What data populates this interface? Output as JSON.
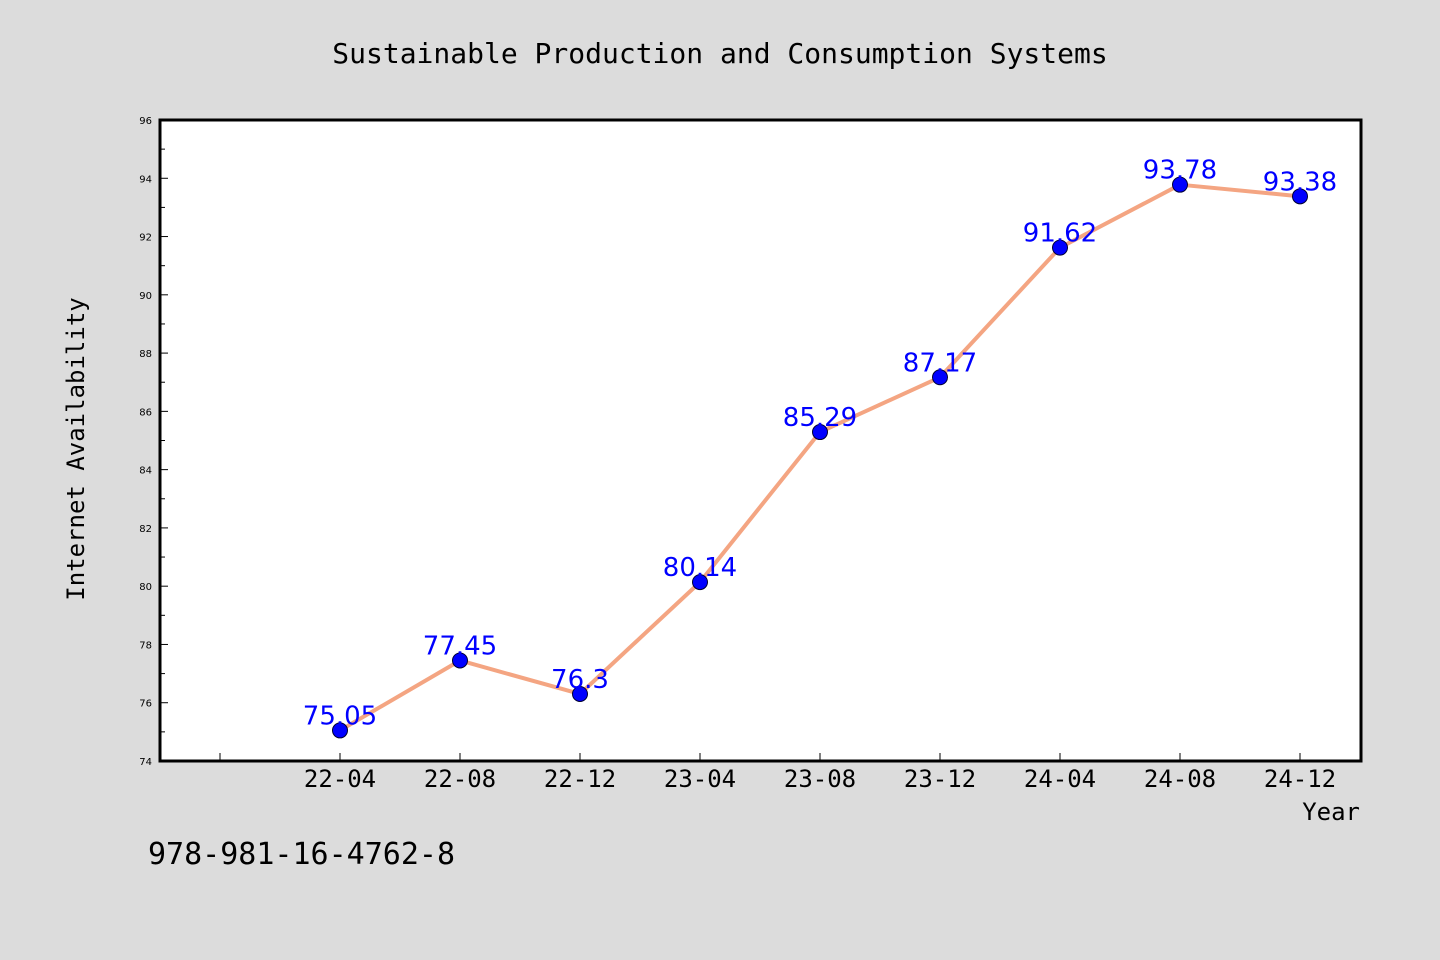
{
  "chart_data": {
    "type": "line",
    "title": "Sustainable Production and Consumption Systems",
    "xlabel": "Year",
    "ylabel": "Internet Availability",
    "categories": [
      "22-04",
      "22-08",
      "22-12",
      "23-04",
      "23-08",
      "23-12",
      "24-04",
      "24-08",
      "24-12"
    ],
    "values": [
      75.05,
      77.45,
      76.3,
      80.14,
      85.29,
      87.17,
      91.62,
      93.78,
      93.38
    ],
    "data_labels": [
      "75.05",
      "77.45",
      "76.3",
      "80.14",
      "85.29",
      "87.17",
      "91.62",
      "93.78",
      "93.38"
    ],
    "ylim": [
      74,
      96
    ],
    "yticks": [
      74,
      76,
      78,
      80,
      82,
      84,
      86,
      88,
      90,
      92,
      94,
      96
    ],
    "grid": false,
    "legend": "none",
    "colors": {
      "line": "#f4a582",
      "marker": "#0000ff",
      "label": "#0000ff",
      "axis": "#000000",
      "plot_bg": "#ffffff",
      "page_bg": "#dcdcdc"
    }
  },
  "footer": {
    "isbn": "978-981-16-4762-8"
  }
}
